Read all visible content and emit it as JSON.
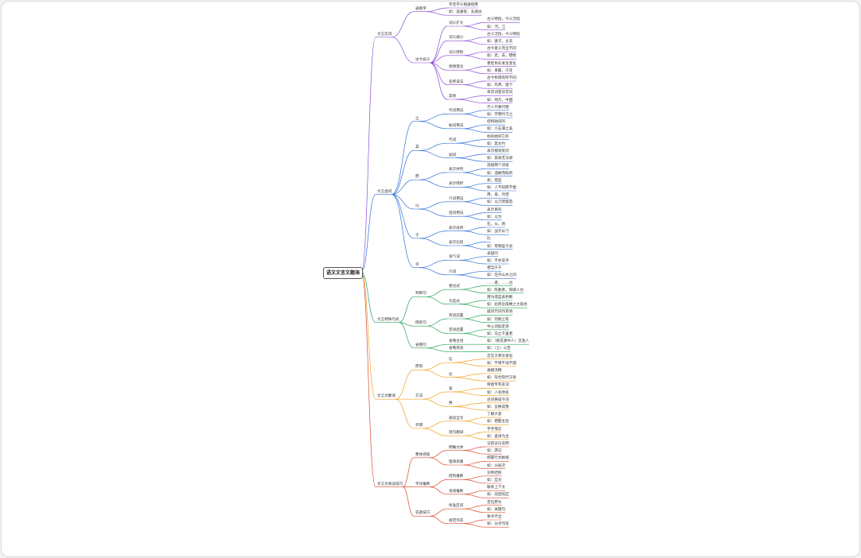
{
  "root": {
    "label": "语文文言文题海"
  },
  "branches": [
    {
      "label": "文言实词",
      "color": "#8a4fd6",
      "children": [
        {
          "label": "通假字",
          "children": [
            {
              "label": "字音字义相通借用"
            },
            {
              "label": "如：说通悦，女通汝"
            }
          ]
        },
        {
          "label": "古今异义",
          "children": [
            {
              "label": "词义扩大",
              "children": [
                {
                  "label": "古义特指，今义泛指"
                },
                {
                  "label": "如：河，江"
                }
              ]
            },
            {
              "label": "词义缩小",
              "children": [
                {
                  "label": "古义泛指，今义特指"
                },
                {
                  "label": "如：妻子，丈夫"
                }
              ]
            },
            {
              "label": "词义转移",
              "children": [
                {
                  "label": "古今意义完全不同"
                },
                {
                  "label": "如：走，去，牺牲"
                }
              ]
            },
            {
              "label": "感情变化",
              "children": [
                {
                  "label": "褒贬色彩发生变化"
                },
                {
                  "label": "如：卑鄙，爪牙"
                }
              ]
            },
            {
              "label": "名称说法",
              "children": [
                {
                  "label": "古今称谓有所不同"
                },
                {
                  "label": "如：先帝，陛下"
                }
              ]
            },
            {
              "label": "其他",
              "children": [
                {
                  "label": "单音词变双音词"
                },
                {
                  "label": "如：地方，中国"
                }
              ]
            }
          ]
        }
      ]
    },
    {
      "label": "文言虚词",
      "color": "#2f6fd8",
      "children": [
        {
          "label": "之",
          "children": [
            {
              "label": "代词用法",
              "children": [
                {
                  "label": "代人代事代物"
                },
                {
                  "label": "如：学而时习之"
                }
              ]
            },
            {
              "label": "助词用法",
              "children": [
                {
                  "label": "结构助词的"
                },
                {
                  "label": "如：小石潭之美"
                }
              ]
            }
          ]
        },
        {
          "label": "其",
          "children": [
            {
              "label": "代词",
              "children": [
                {
                  "label": "他的她的它的"
                },
                {
                  "label": "如：其文约"
                }
              ]
            },
            {
              "label": "副词",
              "children": [
                {
                  "label": "表示揣测反问"
                },
                {
                  "label": "如：其真无马邪"
                }
              ]
            }
          ]
        },
        {
          "label": "而",
          "children": [
            {
              "label": "表示并列",
              "children": [
                {
                  "label": "连接两个词语"
                },
                {
                  "label": "如：温故而知新"
                }
              ]
            },
            {
              "label": "表示转折",
              "children": [
                {
                  "label": "却，但是"
                },
                {
                  "label": "如：人不知而不愠"
                }
              ]
            }
          ]
        },
        {
          "label": "以",
          "children": [
            {
              "label": "介词用法",
              "children": [
                {
                  "label": "用，拿，凭借"
                },
                {
                  "label": "如：以刀劈狼首"
                }
              ]
            },
            {
              "label": "连词用法",
              "children": [
                {
                  "label": "表示目的"
                },
                {
                  "label": "如：以为"
                }
              ]
            }
          ]
        },
        {
          "label": "于",
          "children": [
            {
              "label": "表示处所",
              "children": [
                {
                  "label": "在，从，到"
                },
                {
                  "label": "如：战于长勺"
                }
              ]
            },
            {
              "label": "表示比较",
              "children": [
                {
                  "label": "比"
                },
                {
                  "label": "如：苛政猛于虎"
                }
              ]
            }
          ]
        },
        {
          "label": "乎",
          "children": [
            {
              "label": "语气词",
              "children": [
                {
                  "label": "表疑问"
                },
                {
                  "label": "如：不亦说乎"
                }
              ]
            },
            {
              "label": "介词",
              "children": [
                {
                  "label": "相当于于"
                },
                {
                  "label": "如：在乎山水之间"
                }
              ]
            }
          ]
        }
      ]
    },
    {
      "label": "文言特殊句式",
      "color": "#27a35a",
      "children": [
        {
          "label": "判断句",
          "children": [
            {
              "label": "者也式",
              "children": [
                {
                  "label": "……者，……也"
                },
                {
                  "label": "如：陈胜者，阳城人也"
                }
              ]
            },
            {
              "label": "为是式",
              "children": [
                {
                  "label": "用为或是表判断"
                },
                {
                  "label": "如：此则岳阳楼之大观也"
                }
              ]
            }
          ]
        },
        {
          "label": "倒装句",
          "children": [
            {
              "label": "宾语前置",
              "children": [
                {
                  "label": "疑问代词作宾语"
                },
                {
                  "label": "如：何陋之有"
                }
              ]
            },
            {
              "label": "定语后置",
              "children": [
                {
                  "label": "中心词加定语"
                },
                {
                  "label": "如：马之千里者"
                }
              ]
            }
          ]
        },
        {
          "label": "省略句",
          "children": [
            {
              "label": "省略主语",
              "children": [
                {
                  "label": "如：（桃花源中人）见渔人"
                }
              ]
            },
            {
              "label": "省略宾语",
              "children": [
                {
                  "label": "如：（之）以告"
                }
              ]
            }
          ]
        }
      ]
    },
    {
      "label": "文言文翻译",
      "color": "#f0a020",
      "children": [
        {
          "label": "原则",
          "children": [
            {
              "label": "信",
              "children": [
                {
                  "label": "忠实于原文意思"
                },
                {
                  "label": "如：不增不减不漏"
                }
              ]
            },
            {
              "label": "达",
              "children": [
                {
                  "label": "通顺流畅"
                },
                {
                  "label": "如：符合现代汉语"
                }
              ]
            }
          ]
        },
        {
          "label": "方法",
          "children": [
            {
              "label": "留",
              "children": [
                {
                  "label": "保留专有名词"
                },
                {
                  "label": "如：人名地名"
                }
              ]
            },
            {
              "label": "换",
              "children": [
                {
                  "label": "古词换成今词"
                },
                {
                  "label": "如：吾换成我"
                }
              ]
            }
          ]
        },
        {
          "label": "步骤",
          "children": [
            {
              "label": "通读全文",
              "children": [
                {
                  "label": "了解大意"
                },
                {
                  "label": "如：把握主旨"
                }
              ]
            },
            {
              "label": "逐句翻译",
              "children": [
                {
                  "label": "字字落实"
                },
                {
                  "label": "如：直译为主"
                }
              ]
            }
          ]
        }
      ]
    },
    {
      "label": "文言文阅读技巧",
      "color": "#dc4a2e",
      "children": [
        {
          "label": "整体感知",
          "children": [
            {
              "label": "明确文体",
              "children": [
                {
                  "label": "记叙议论说明"
                },
                {
                  "label": "如：游记"
                }
              ]
            },
            {
              "label": "理清思路",
              "children": [
                {
                  "label": "把握行文脉络"
                },
                {
                  "label": "如：分层次"
                }
              ]
            }
          ]
        },
        {
          "label": "字词推断",
          "children": [
            {
              "label": "结构推断",
              "children": [
                {
                  "label": "对称结构"
                },
                {
                  "label": "如：互文"
                }
              ]
            },
            {
              "label": "语境推断",
              "children": [
                {
                  "label": "联系上下文"
                },
                {
                  "label": "如：前后照应"
                }
              ]
            }
          ]
        },
        {
          "label": "答题技巧",
          "children": [
            {
              "label": "找准区间",
              "children": [
                {
                  "label": "定位原文"
                },
                {
                  "label": "如：关键句"
                }
              ]
            },
            {
              "label": "规范作答",
              "children": [
                {
                  "label": "要点齐全"
                },
                {
                  "label": "如：分点作答"
                }
              ]
            }
          ]
        }
      ]
    }
  ]
}
